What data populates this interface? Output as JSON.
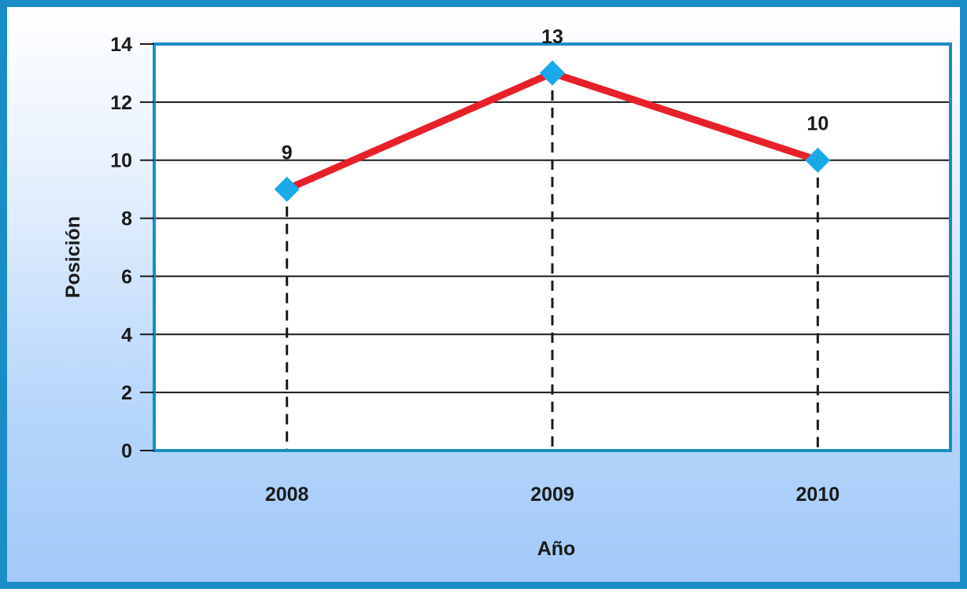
{
  "chart_data": {
    "type": "line",
    "title": "",
    "xlabel": "Año",
    "ylabel": "Posición",
    "categories": [
      "2008",
      "2009",
      "2010"
    ],
    "series": [
      {
        "values": [
          9,
          13,
          10
        ]
      }
    ],
    "data_labels": [
      "9",
      "13",
      "10"
    ],
    "ylim": [
      0,
      14
    ],
    "yticks": [
      0,
      2,
      4,
      6,
      8,
      10,
      12,
      14
    ],
    "grid": true,
    "drop_lines": true,
    "line_color": "#e8202a",
    "marker_color": "#1aa9e8",
    "marker_shape": "diamond",
    "plot_background": "#ffffff",
    "plot_border_color": "#1a8dc6",
    "frame_border_color": "#1a8dc6",
    "gradient_colors": [
      "#ffffff",
      "#a3c9f8"
    ]
  }
}
